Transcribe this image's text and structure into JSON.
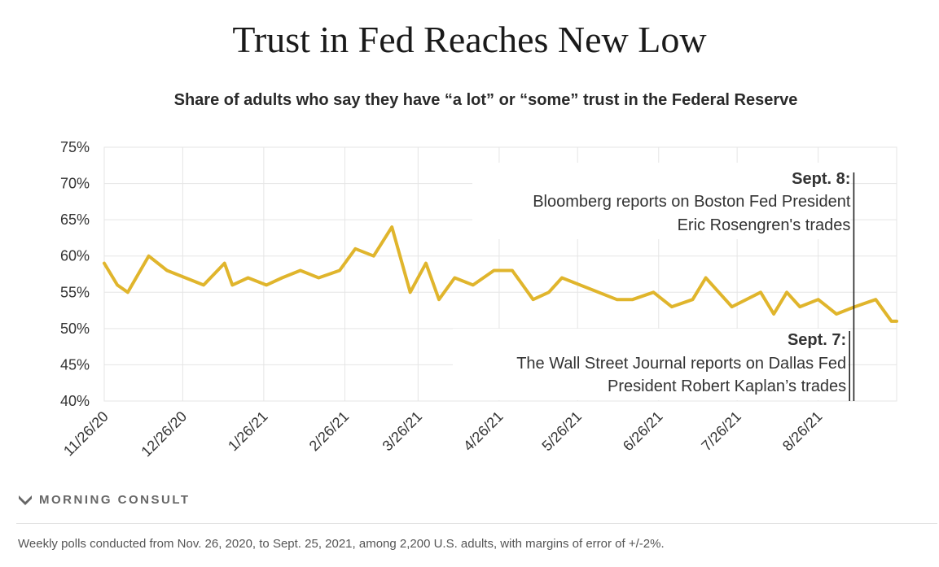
{
  "title": "Trust in Fed Reaches New Low",
  "subtitle": "Share of adults who say they have “a lot” or “some” trust in the Federal Reserve",
  "brand": "MORNING CONSULT",
  "footnote": "Weekly polls conducted from Nov. 26, 2020, to Sept. 25, 2021, among 2,200 U.S. adults, with margins of error of +/-2%.",
  "colors": {
    "line": "#e0b52c",
    "grid": "#e5e5e5",
    "text": "#333333",
    "annotation_line": "#222222"
  },
  "chart_data": {
    "type": "line",
    "y_tick_labels": [
      "40%",
      "45%",
      "50%",
      "55%",
      "60%",
      "65%",
      "70%",
      "75%"
    ],
    "ylim": [
      40,
      75
    ],
    "x_tick_labels": [
      "11/26/20",
      "12/26/20",
      "1/26/21",
      "2/26/21",
      "3/26/21",
      "4/26/21",
      "5/26/21",
      "6/26/21",
      "7/26/21",
      "8/26/21"
    ],
    "x_tick_dates": [
      "2020-11-26",
      "2020-12-26",
      "2021-01-26",
      "2021-02-26",
      "2021-03-26",
      "2021-04-26",
      "2021-05-26",
      "2021-06-26",
      "2021-07-26",
      "2021-08-26"
    ],
    "xlim": [
      "2020-11-26",
      "2021-09-25"
    ],
    "grid": true,
    "series": [
      {
        "x": [
          "2020-11-26",
          "2020-12-01",
          "2020-12-05",
          "2020-12-13",
          "2020-12-20",
          "2021-01-03",
          "2021-01-11",
          "2021-01-14",
          "2021-01-20",
          "2021-01-27",
          "2021-02-02",
          "2021-02-09",
          "2021-02-16",
          "2021-02-24",
          "2021-03-02",
          "2021-03-09",
          "2021-03-16",
          "2021-03-23",
          "2021-03-29",
          "2021-04-03",
          "2021-04-09",
          "2021-04-16",
          "2021-04-24",
          "2021-05-01",
          "2021-05-09",
          "2021-05-15",
          "2021-05-20",
          "2021-06-10",
          "2021-06-16",
          "2021-06-24",
          "2021-07-01",
          "2021-07-09",
          "2021-07-14",
          "2021-07-24",
          "2021-08-04",
          "2021-08-09",
          "2021-08-14",
          "2021-08-19",
          "2021-08-26",
          "2021-09-02",
          "2021-09-09",
          "2021-09-17",
          "2021-09-23",
          "2021-09-25"
        ],
        "values": [
          59,
          56,
          55,
          60,
          58,
          56,
          59,
          56,
          57,
          56,
          57,
          58,
          57,
          58,
          61,
          60,
          64,
          55,
          59,
          54,
          57,
          56,
          58,
          58,
          54,
          55,
          57,
          54,
          54,
          55,
          53,
          54,
          57,
          53,
          55,
          52,
          55,
          53,
          54,
          52,
          53,
          54,
          51,
          51
        ]
      }
    ],
    "annotations": [
      {
        "date": "2021-09-08",
        "heading": "Sept. 8:",
        "lines": [
          "Bloomberg reports on Boston Fed President",
          "Eric Rosengren's trades"
        ]
      },
      {
        "date": "2021-09-07",
        "heading": "Sept. 7:",
        "lines": [
          "The Wall Street Journal reports on Dallas Fed",
          "President Robert Kaplan’s trades"
        ]
      }
    ]
  }
}
